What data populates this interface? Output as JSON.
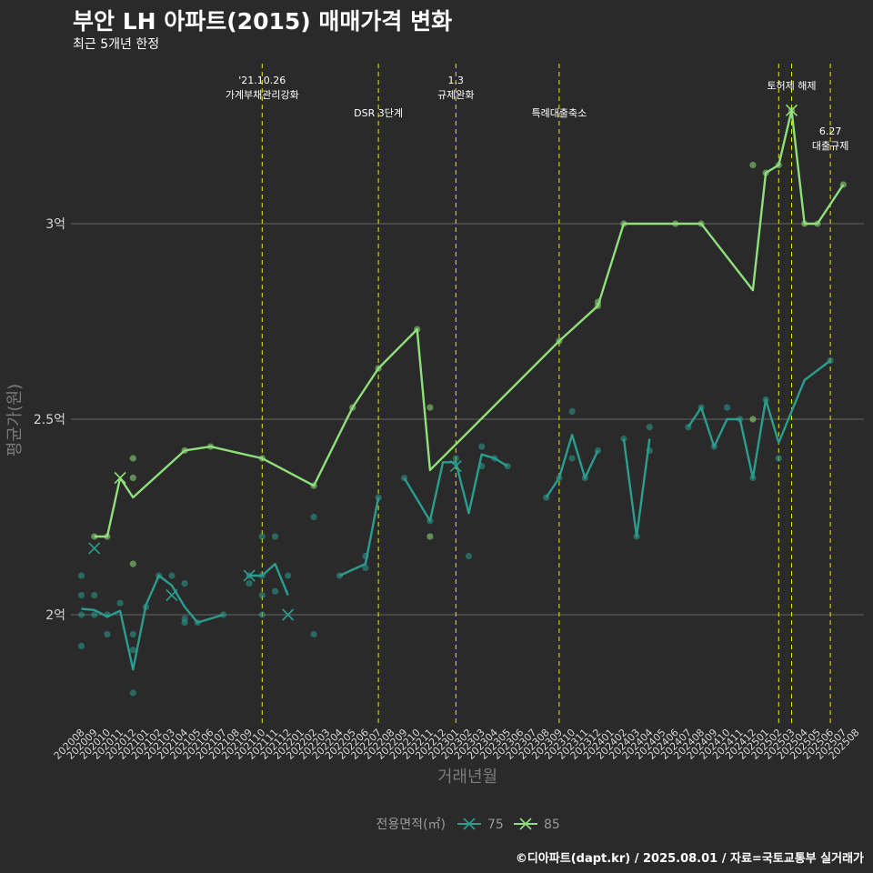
{
  "title": "부안 LH 아파트(2015) 매매가격 변화",
  "subtitle": "최근 5개년 한정",
  "caption": "©디아파트(dapt.kr) / 2025.08.01 / 자료=국토교통부 실거래가",
  "colors": {
    "background": "#2a2a2b",
    "s75": "#2a9d8f",
    "s85": "#8fe07a",
    "event": "#e8e800",
    "grid": "#666666"
  },
  "chart_data": {
    "type": "line",
    "xlabel": "거래년월",
    "ylabel": "평균가(원)",
    "ylim": [
      17700,
      33500
    ],
    "yticks": [
      {
        "value": 20000,
        "label": "2억"
      },
      {
        "value": 25000,
        "label": "2.5억"
      },
      {
        "value": 30000,
        "label": "3억"
      }
    ],
    "x_labels": [
      "202008",
      "202009",
      "202010",
      "202011",
      "202012",
      "202101",
      "202102",
      "202103",
      "202104",
      "202105",
      "202106",
      "202107",
      "202108",
      "202109",
      "202110",
      "202111",
      "202112",
      "202201",
      "202202",
      "202203",
      "202204",
      "202205",
      "202206",
      "202207",
      "202208",
      "202209",
      "202210",
      "202211",
      "202212",
      "202301",
      "202302",
      "202303",
      "202304",
      "202305",
      "202306",
      "202307",
      "202308",
      "202309",
      "202310",
      "202311",
      "202312",
      "202401",
      "202402",
      "202403",
      "202404",
      "202405",
      "202406",
      "202407",
      "202408",
      "202409",
      "202410",
      "202411",
      "202412",
      "202501",
      "202502",
      "202503",
      "202504",
      "202505",
      "202506",
      "202507",
      "202508"
    ],
    "legend_title": "전용면적(㎡)",
    "series": [
      {
        "name": "75",
        "line": [
          [
            "2020-08",
            20150
          ],
          [
            "2020-09",
            20120
          ],
          [
            "2020-10",
            19950
          ],
          [
            "2020-11",
            20100
          ],
          [
            "2020-12",
            18600
          ],
          [
            "2021-01",
            20250
          ],
          [
            "2021-02",
            21000
          ],
          [
            "2021-03",
            20750
          ],
          [
            "2021-04",
            20200
          ],
          [
            "2021-05",
            19800
          ],
          [
            "2021-07",
            20000
          ],
          null,
          [
            "2021-09",
            21000
          ],
          [
            "2021-10",
            21000
          ],
          [
            "2021-11",
            21300
          ],
          [
            "2021-12",
            20500
          ],
          null,
          [
            "2022-04",
            21000
          ],
          [
            "2022-06",
            21300
          ],
          [
            "2022-07",
            23000
          ],
          null,
          [
            "2022-09",
            23500
          ],
          [
            "2022-11",
            22400
          ],
          [
            "2022-12",
            23900
          ],
          [
            "2023-01",
            23900
          ],
          [
            "2023-02",
            22600
          ],
          [
            "2023-03",
            24100
          ],
          [
            "2023-04",
            24000
          ],
          [
            "2023-05",
            23800
          ],
          null,
          [
            "2023-08",
            23000
          ],
          [
            "2023-09",
            23500
          ],
          [
            "2023-10",
            24600
          ],
          [
            "2023-11",
            23500
          ],
          [
            "2023-12",
            24200
          ],
          null,
          [
            "2024-02",
            24500
          ],
          [
            "2024-03",
            22000
          ],
          [
            "2024-04",
            24500
          ],
          null,
          [
            "2024-07",
            24800
          ],
          [
            "2024-08",
            25300
          ],
          [
            "2024-09",
            24300
          ],
          [
            "2024-10",
            25000
          ],
          [
            "2024-11",
            25000
          ],
          [
            "2024-12",
            23500
          ],
          [
            "2025-01",
            25500
          ],
          [
            "2025-02",
            24400
          ],
          [
            "2025-04",
            26000
          ],
          [
            "2025-06",
            26500
          ]
        ],
        "points": [
          [
            "2020-08",
            21000
          ],
          [
            "2020-08",
            20500
          ],
          [
            "2020-08",
            20000
          ],
          [
            "2020-08",
            19200
          ],
          [
            "2020-09",
            20500
          ],
          [
            "2020-09",
            20000
          ],
          [
            "2020-10",
            19500
          ],
          [
            "2020-10",
            20000
          ],
          [
            "2020-11",
            20300
          ],
          [
            "2020-12",
            19500
          ],
          [
            "2020-12",
            19100
          ],
          [
            "2020-12",
            18000
          ],
          [
            "2021-01",
            20200
          ],
          [
            "2021-02",
            21000
          ],
          [
            "2021-03",
            21000
          ],
          [
            "2021-04",
            20800
          ],
          [
            "2021-04",
            19800
          ],
          [
            "2021-04",
            19900
          ],
          [
            "2021-05",
            19800
          ],
          [
            "2021-07",
            20000
          ],
          [
            "2021-09",
            21000
          ],
          [
            "2021-09",
            20800
          ],
          [
            "2021-10",
            22000
          ],
          [
            "2021-10",
            21000
          ],
          [
            "2021-10",
            20500
          ],
          [
            "2021-10",
            20000
          ],
          [
            "2021-11",
            22000
          ],
          [
            "2021-11",
            20600
          ],
          [
            "2021-12",
            21000
          ],
          [
            "2022-02",
            22500
          ],
          [
            "2022-02",
            19500
          ],
          [
            "2022-04",
            21000
          ],
          [
            "2022-06",
            21500
          ],
          [
            "2022-06",
            21200
          ],
          [
            "2022-07",
            23000
          ],
          [
            "2022-09",
            23500
          ],
          [
            "2022-11",
            22400
          ],
          [
            "2023-01",
            24000
          ],
          [
            "2023-02",
            21500
          ],
          [
            "2023-03",
            24300
          ],
          [
            "2023-03",
            23800
          ],
          [
            "2023-04",
            24000
          ],
          [
            "2023-05",
            23800
          ],
          [
            "2023-08",
            23000
          ],
          [
            "2023-09",
            23500
          ],
          [
            "2023-10",
            25200
          ],
          [
            "2023-10",
            24000
          ],
          [
            "2023-11",
            23500
          ],
          [
            "2023-12",
            24200
          ],
          [
            "2024-02",
            24500
          ],
          [
            "2024-03",
            22000
          ],
          [
            "2024-04",
            24800
          ],
          [
            "2024-04",
            24200
          ],
          [
            "2024-07",
            24800
          ],
          [
            "2024-08",
            25300
          ],
          [
            "2024-09",
            24300
          ],
          [
            "2024-10",
            25300
          ],
          [
            "2024-11",
            25000
          ],
          [
            "2024-12",
            23500
          ],
          [
            "2025-01",
            25500
          ],
          [
            "2025-02",
            24000
          ],
          [
            "2025-06",
            26500
          ]
        ],
        "crosses": [
          [
            "2020-09",
            21700
          ],
          [
            "2021-03",
            20500
          ],
          [
            "2021-09",
            21000
          ],
          [
            "2021-12",
            20000
          ],
          [
            "2023-01",
            23800
          ]
        ]
      },
      {
        "name": "85",
        "line": [
          [
            "2020-09",
            22000
          ],
          [
            "2020-10",
            22000
          ],
          [
            "2020-11",
            23500
          ],
          [
            "2020-12",
            23000
          ],
          [
            "2021-04",
            24200
          ],
          [
            "2021-06",
            24300
          ],
          [
            "2021-10",
            24000
          ],
          [
            "2022-02",
            23300
          ],
          [
            "2022-05",
            25300
          ],
          [
            "2022-07",
            26300
          ],
          [
            "2022-10",
            27300
          ],
          [
            "2022-11",
            23700
          ],
          [
            "2023-09",
            27000
          ],
          [
            "2023-12",
            27900
          ],
          [
            "2024-02",
            30000
          ],
          [
            "2024-06",
            30000
          ],
          [
            "2024-08",
            30000
          ],
          [
            "2024-12",
            28300
          ],
          [
            "2025-01",
            31300
          ],
          [
            "2025-02",
            31500
          ],
          [
            "2025-03",
            32900
          ],
          [
            "2025-04",
            30000
          ],
          [
            "2025-05",
            30000
          ],
          [
            "2025-07",
            31000
          ]
        ],
        "points": [
          [
            "2020-09",
            22000
          ],
          [
            "2020-10",
            22000
          ],
          [
            "2020-12",
            24000
          ],
          [
            "2020-12",
            23500
          ],
          [
            "2020-12",
            21300
          ],
          [
            "2021-04",
            24200
          ],
          [
            "2021-06",
            24300
          ],
          [
            "2021-10",
            24000
          ],
          [
            "2022-02",
            23300
          ],
          [
            "2022-05",
            25300
          ],
          [
            "2022-07",
            26300
          ],
          [
            "2022-10",
            27300
          ],
          [
            "2022-11",
            25300
          ],
          [
            "2022-11",
            22000
          ],
          [
            "2023-09",
            27000
          ],
          [
            "2023-12",
            28000
          ],
          [
            "2023-12",
            27900
          ],
          [
            "2024-02",
            30000
          ],
          [
            "2024-06",
            30000
          ],
          [
            "2024-08",
            30000
          ],
          [
            "2024-12",
            31500
          ],
          [
            "2024-12",
            25000
          ],
          [
            "2025-01",
            31300
          ],
          [
            "2025-02",
            31500
          ],
          [
            "2025-03",
            32900
          ],
          [
            "2025-04",
            30000
          ],
          [
            "2025-05",
            30000
          ],
          [
            "2025-07",
            31000
          ]
        ],
        "crosses": [
          [
            "2020-11",
            23500
          ],
          [
            "2025-03",
            32900
          ]
        ]
      }
    ],
    "events": [
      {
        "date": "2021-10",
        "lines": [
          "'21.10.26",
          "가계부채관리강화"
        ],
        "row": 1
      },
      {
        "date": "2022-07",
        "lines": [
          "DSR 3단계"
        ],
        "row": 2
      },
      {
        "date": "2023-01",
        "lines": [
          "1.3",
          "규제완화"
        ],
        "row": 1
      },
      {
        "date": "2023-09",
        "lines": [
          "특례대출축소"
        ],
        "row": 2
      },
      {
        "date": "2025-02",
        "lines": [],
        "row": 1
      },
      {
        "date": "2025-03",
        "lines": [
          "토허제 해제"
        ],
        "row": 0
      },
      {
        "date": "2025-06",
        "lines": [
          "6.27",
          "대출규제"
        ],
        "row": 3
      }
    ]
  }
}
